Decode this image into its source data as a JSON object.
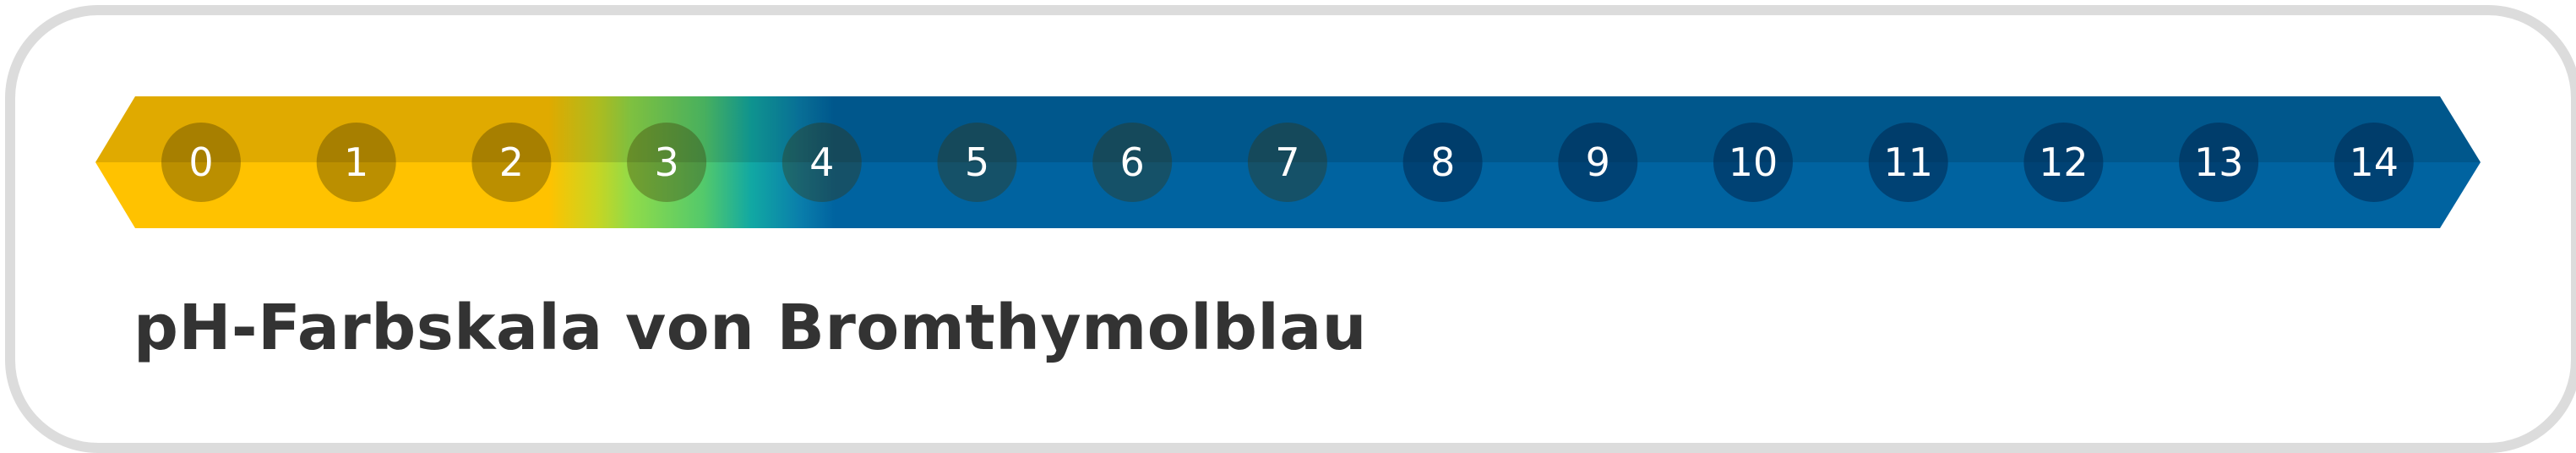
{
  "title": "pH-Farbskala von Bromthymolblau",
  "scale": {
    "values": [
      "0",
      "1",
      "2",
      "3",
      "4",
      "5",
      "6",
      "7",
      "8",
      "9",
      "10",
      "11",
      "12",
      "13",
      "14"
    ],
    "colors": {
      "acid_yellow": "#ffc200",
      "acid_yellow_dark": "#e2ab00",
      "neutral_green": "#8fdb4a",
      "neutral_teal": "#11a8a3",
      "base_blue": "#0063a0",
      "base_blue_dark": "#00548a"
    }
  }
}
